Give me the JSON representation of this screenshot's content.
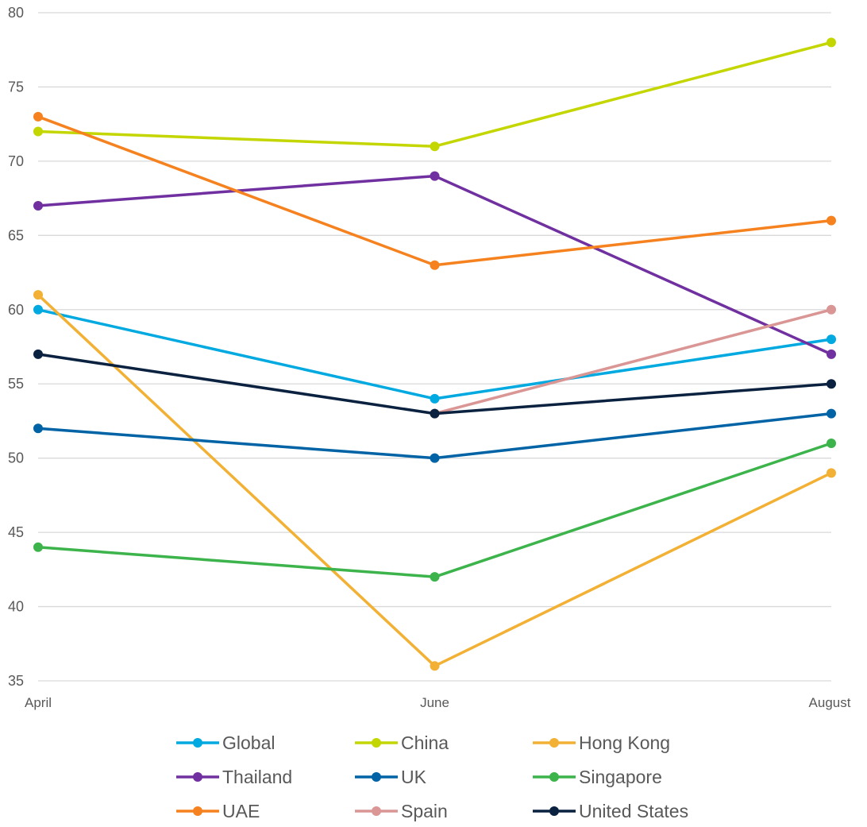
{
  "chart_data": {
    "type": "line",
    "title": "",
    "xlabel": "",
    "ylabel": "",
    "categories": [
      "April",
      "June",
      "August"
    ],
    "ylim": [
      35,
      80
    ],
    "yticks": [
      35,
      40,
      45,
      50,
      55,
      60,
      65,
      70,
      75,
      80
    ],
    "grid": true,
    "legend_position": "bottom",
    "series": [
      {
        "name": "Global",
        "color": "#00a9e0",
        "values": [
          60,
          54,
          58
        ]
      },
      {
        "name": "China",
        "color": "#c4d600",
        "values": [
          72,
          71,
          78
        ]
      },
      {
        "name": "Hong Kong",
        "color": "#f2b134",
        "values": [
          61,
          36,
          49
        ]
      },
      {
        "name": "Thailand",
        "color": "#7030a0",
        "values": [
          67,
          69,
          57
        ]
      },
      {
        "name": "UK",
        "color": "#0063a5",
        "values": [
          52,
          50,
          53
        ]
      },
      {
        "name": "Singapore",
        "color": "#3cb44b",
        "values": [
          44,
          42,
          51
        ]
      },
      {
        "name": "UAE",
        "color": "#f5821f",
        "values": [
          73,
          63,
          66
        ]
      },
      {
        "name": "Spain",
        "color": "#d99694",
        "values": [
          null,
          53,
          60
        ]
      },
      {
        "name": "United States",
        "color": "#0a2240",
        "values": [
          57,
          53,
          55
        ]
      }
    ]
  }
}
